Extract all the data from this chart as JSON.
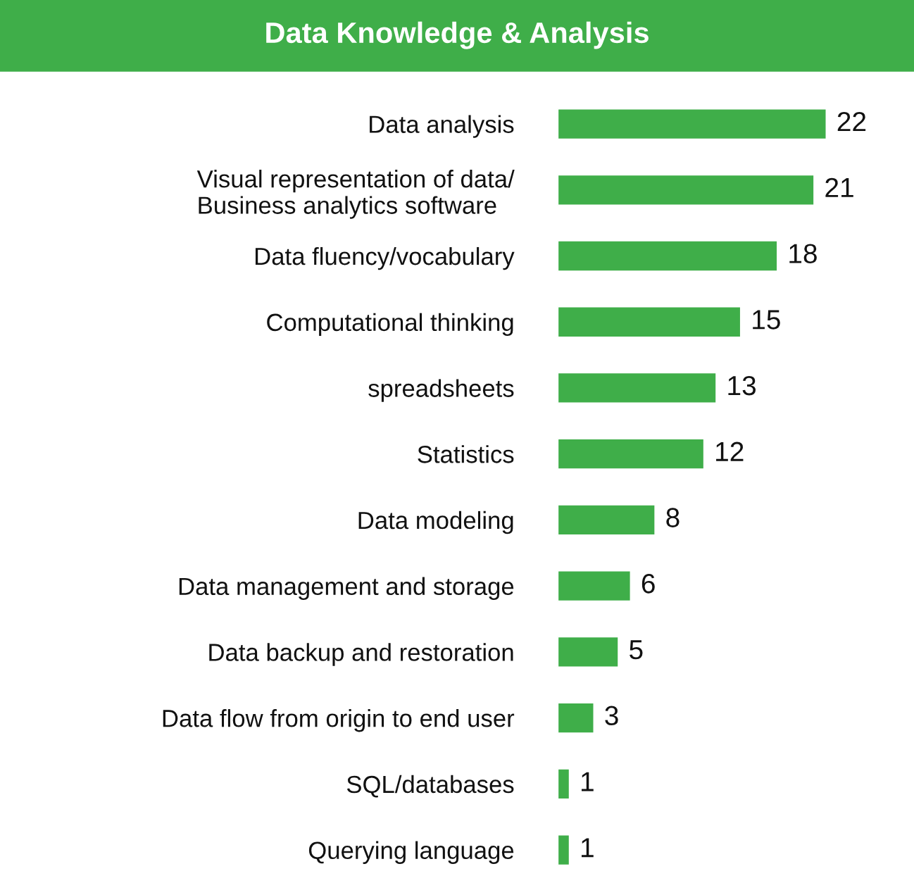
{
  "chart_data": {
    "type": "bar",
    "orientation": "horizontal",
    "title": "Data Knowledge & Analysis",
    "categories": [
      "Data analysis",
      "Visual representation of data/\nBusiness analytics software",
      "Data fluency/vocabulary",
      "Computational thinking",
      "spreadsheets",
      "Statistics",
      "Data modeling",
      "Data management and storage",
      "Data backup and restoration",
      "Data flow from origin to end user",
      "SQL/databases",
      "Querying language"
    ],
    "values": [
      22,
      21,
      18,
      15,
      13,
      12,
      8,
      6,
      5,
      3,
      1,
      1
    ],
    "color": "#3fae49",
    "data_labels": true,
    "grid": false,
    "legend": false
  }
}
